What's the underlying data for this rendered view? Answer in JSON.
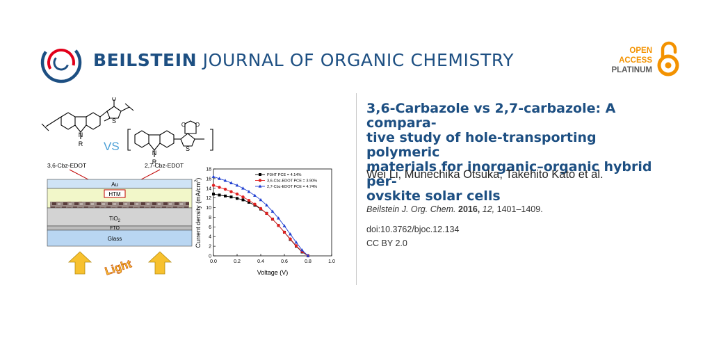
{
  "journal": {
    "name_bold": "BEILSTEIN",
    "name_rest": " JOURNAL OF ORGANIC CHEMISTRY",
    "logo_icon": "beilstein-ring-logo"
  },
  "badge": {
    "line1": "OPEN",
    "line2": "ACCESS",
    "line3": "PLATINUM",
    "icon": "open-lock-icon",
    "color": "#f39200"
  },
  "article": {
    "title": "3,6-Carbazole vs 2,7-carbazole: A compara-tive study of hole-transporting polymeric materials for inorganic–organic hybrid per-ovskite solar cells",
    "title_lines": [
      "3,6-Carbazole vs 2,7-carbazole: A compara-",
      "tive study of hole-transporting polymeric",
      "materials for inorganic–organic hybrid per-",
      "ovskite solar cells"
    ],
    "authors": "Wei Li, Munechika Otsuka, Takehito Kato et al.",
    "citation": {
      "journal": "Beilstein J. Org. Chem.",
      "year": "2016,",
      "volume": "12,",
      "pages": "1401–1409."
    },
    "doi": "doi:10.3762/bjoc.12.134",
    "license": "CC BY 2.0"
  },
  "graphic": {
    "molecule_left": "3,6-Cbz-EDOT",
    "molecule_right": "2,7-Cbz-EDOT",
    "vs_label": "VS",
    "atom_N": "N",
    "atom_R": "R",
    "atom_O": "O",
    "atom_S": "S",
    "device_layers": {
      "au": "Au",
      "htm": "HTM",
      "tio2": "TiO",
      "tio2_sub": "2",
      "fto": "FTO",
      "glass": "Glass"
    },
    "light_label": "Light"
  },
  "chart_data": {
    "type": "line",
    "xlabel": "Voltage (V)",
    "ylabel": "Current density (mA/cm",
    "ylabel_sup": "2",
    "ylabel_close": ")",
    "xlim": [
      0.0,
      1.0
    ],
    "ylim": [
      0,
      18
    ],
    "xticks": [
      "0.0",
      "0.2",
      "0.4",
      "0.6",
      "0.8",
      "1.0"
    ],
    "yticks": [
      "0",
      "2",
      "4",
      "6",
      "8",
      "10",
      "12",
      "14",
      "16",
      "18"
    ],
    "legend_position": "top-right",
    "series": [
      {
        "name": "P3HT PCE = 4.14%",
        "color": "#000000",
        "marker": "square",
        "x": [
          0.0,
          0.05,
          0.1,
          0.15,
          0.2,
          0.25,
          0.3,
          0.35,
          0.4,
          0.45,
          0.5,
          0.55,
          0.6,
          0.65,
          0.7,
          0.75,
          0.8
        ],
        "y": [
          12.8,
          12.6,
          12.4,
          12.2,
          11.9,
          11.6,
          11.1,
          10.5,
          9.7,
          8.8,
          7.6,
          6.3,
          4.9,
          3.4,
          2.0,
          0.8,
          0.0
        ]
      },
      {
        "name": "3,6-Cbz-EDOT PCE = 3.90%",
        "color": "#e02020",
        "marker": "circle",
        "x": [
          0.0,
          0.05,
          0.1,
          0.15,
          0.2,
          0.25,
          0.3,
          0.35,
          0.4,
          0.45,
          0.5,
          0.55,
          0.6,
          0.65,
          0.7,
          0.75,
          0.8
        ],
        "y": [
          14.6,
          14.2,
          13.8,
          13.3,
          12.8,
          12.2,
          11.5,
          10.7,
          9.8,
          8.8,
          7.6,
          6.3,
          4.9,
          3.5,
          2.1,
          0.9,
          0.0
        ]
      },
      {
        "name": "2,7-Cbz-EDOT PCE = 4.74%",
        "color": "#1f3fd0",
        "marker": "triangle",
        "x": [
          0.0,
          0.05,
          0.1,
          0.15,
          0.2,
          0.25,
          0.3,
          0.35,
          0.4,
          0.45,
          0.5,
          0.55,
          0.6,
          0.65,
          0.7,
          0.75,
          0.8
        ],
        "y": [
          16.4,
          16.0,
          15.6,
          15.1,
          14.6,
          14.0,
          13.3,
          12.5,
          11.6,
          10.5,
          9.2,
          7.8,
          6.2,
          4.5,
          2.8,
          1.2,
          0.0
        ]
      }
    ]
  }
}
